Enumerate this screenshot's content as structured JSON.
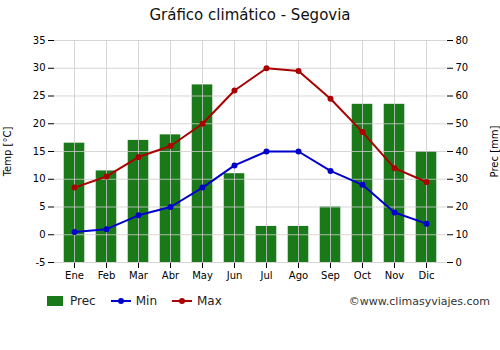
{
  "chart_data": {
    "type": "bar",
    "title": "Gráfico climático - Segovia",
    "categories": [
      "Ene",
      "Feb",
      "Mar",
      "Abr",
      "May",
      "Jun",
      "Jul",
      "Ago",
      "Sep",
      "Oct",
      "Nov",
      "Dic"
    ],
    "series": [
      {
        "name": "Prec",
        "type": "bar",
        "axis": "y2",
        "color": "#1a7a1a",
        "values": [
          43,
          33,
          44,
          46,
          64,
          32,
          13,
          13,
          20,
          57,
          57,
          40
        ]
      },
      {
        "name": "Min",
        "type": "line",
        "marker": "circle",
        "color": "#0000cc",
        "values": [
          0.5,
          1.0,
          3.5,
          5.0,
          8.5,
          12.5,
          15.0,
          15.0,
          11.5,
          9.0,
          4.0,
          2.0
        ]
      },
      {
        "name": "Max",
        "type": "line",
        "marker": "circle",
        "color": "#aa0000",
        "values": [
          8.5,
          10.5,
          14.0,
          16.0,
          20.0,
          26.0,
          30.0,
          29.5,
          24.5,
          18.5,
          12.0,
          9.5
        ]
      }
    ],
    "ylabel": "Temp [°C]",
    "y2label": "Prec [mm]",
    "ylim": [
      -5,
      35
    ],
    "yticks": [
      -5,
      0,
      5,
      10,
      15,
      20,
      25,
      30,
      35
    ],
    "y2lim": [
      0,
      80
    ],
    "y2ticks": [
      0,
      10,
      20,
      30,
      40,
      50,
      60,
      70,
      80
    ],
    "grid": true,
    "legend": "lower left",
    "annotations": [
      "©www.climasyviajes.com"
    ]
  }
}
